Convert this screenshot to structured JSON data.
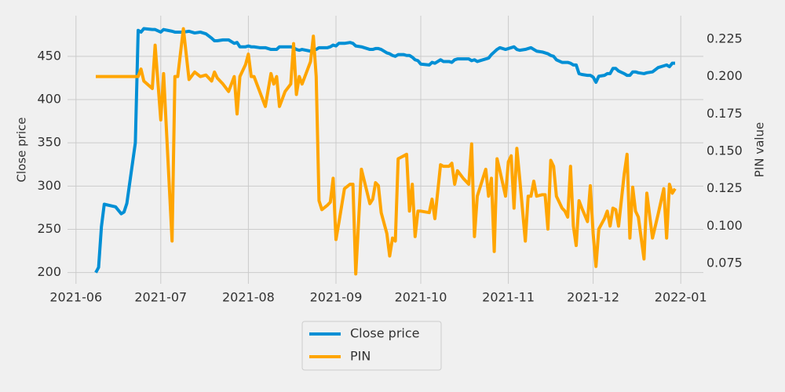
{
  "chart_data": {
    "type": "line",
    "x": [
      18786,
      18787,
      18788,
      18789,
      18793,
      18795,
      18796,
      18797,
      18800,
      18801,
      18802,
      18803,
      18806,
      18807,
      18809,
      18810,
      18813,
      18814,
      18815,
      18817,
      18819,
      18821,
      18823,
      18825,
      18827,
      18828,
      18829,
      18831,
      18833,
      18835,
      18836,
      18837,
      18839,
      18840,
      18841,
      18842,
      18844,
      18846,
      18848,
      18849,
      18850,
      18851,
      18853,
      18855,
      18856,
      18857,
      18858,
      18859,
      18862,
      18863,
      18864,
      18865,
      18866,
      18868,
      18869,
      18870,
      18871,
      18872,
      18874,
      18876,
      18877,
      18878,
      18880,
      18883,
      18884,
      18885,
      18886,
      18887,
      18889,
      18890,
      18891,
      18892,
      18893,
      18895,
      18896,
      18897,
      18898,
      18899,
      18900,
      18901,
      18904,
      18905,
      18906,
      18908,
      18909,
      18911,
      18912,
      18913,
      18914,
      18916,
      18918,
      18919,
      18920,
      18921,
      18924,
      18925,
      18926,
      18927,
      18928,
      18929,
      18931,
      18932,
      18933,
      18934,
      18935,
      18936,
      18938,
      18939,
      18940,
      18941,
      18942,
      18944,
      18945,
      18946,
      18947,
      18948,
      18949,
      18951,
      18952,
      18953,
      18954,
      18955,
      18956,
      18957,
      18958,
      18960,
      18961,
      18962,
      18963,
      18964,
      18966,
      18967,
      18968,
      18969,
      18970,
      18971,
      18973,
      18974,
      18975,
      18976,
      18977,
      18978,
      18980,
      18981,
      18983,
      18985,
      18987,
      18988,
      18989,
      18990,
      18991
    ],
    "series": [
      {
        "name": "Close price",
        "color": "#008fd5",
        "axis": "y",
        "values": [
          200,
          206,
          253,
          279,
          276,
          268,
          270,
          280,
          350,
          480,
          478,
          482,
          481,
          481,
          478,
          481,
          479,
          478,
          478,
          478,
          479,
          477,
          478,
          476,
          471,
          468,
          468,
          469,
          469,
          465,
          466,
          461,
          461,
          462,
          461,
          461,
          460,
          460,
          458,
          458,
          458,
          461,
          461,
          461,
          460,
          458,
          457,
          458,
          456,
          458,
          458,
          460,
          460,
          460,
          461,
          463,
          462,
          465,
          465,
          466,
          465,
          462,
          461,
          458,
          458,
          459,
          459,
          458,
          454,
          453,
          451,
          450,
          452,
          452,
          451,
          451,
          449,
          446,
          445,
          441,
          440,
          443,
          442,
          446,
          444,
          444,
          443,
          446,
          447,
          447,
          447,
          445,
          446,
          444,
          447,
          448,
          452,
          455,
          458,
          460,
          458,
          459,
          460,
          461,
          458,
          457,
          458,
          459,
          460,
          458,
          456,
          455,
          454,
          453,
          451,
          450,
          446,
          443,
          443,
          443,
          442,
          440,
          440,
          430,
          429,
          428,
          428,
          426,
          420,
          427,
          428,
          430,
          430,
          436,
          436,
          433,
          430,
          428,
          428,
          432,
          432,
          431,
          430,
          431,
          432,
          437,
          439,
          440,
          438,
          442,
          442
        ]
      },
      {
        "name": "PIN",
        "color": "#ffa500",
        "axis": "y2",
        "values": [
          0.2,
          0.2,
          0.2,
          0.2,
          0.2,
          0.2,
          0.2,
          0.2,
          0.2,
          0.2,
          0.205,
          0.197,
          0.192,
          0.221,
          0.171,
          0.202,
          0.09,
          0.2,
          0.2,
          0.232,
          0.198,
          0.203,
          0.2,
          0.201,
          0.197,
          0.203,
          0.199,
          0.195,
          0.19,
          0.2,
          0.175,
          0.2,
          0.208,
          0.215,
          0.2,
          0.2,
          0.19,
          0.18,
          0.202,
          0.195,
          0.2,
          0.18,
          0.19,
          0.195,
          0.222,
          0.188,
          0.2,
          0.195,
          0.21,
          0.227,
          0.2,
          0.117,
          0.111,
          0.114,
          0.116,
          0.132,
          0.091,
          0.102,
          0.125,
          0.128,
          0.128,
          0.068,
          0.138,
          0.115,
          0.118,
          0.129,
          0.127,
          0.109,
          0.095,
          0.08,
          0.092,
          0.09,
          0.145,
          0.147,
          0.148,
          0.11,
          0.128,
          0.093,
          0.11,
          0.11,
          0.109,
          0.118,
          0.105,
          0.141,
          0.14,
          0.14,
          0.142,
          0.128,
          0.137,
          0.132,
          0.128,
          0.155,
          0.093,
          0.12,
          0.138,
          0.12,
          0.132,
          0.083,
          0.145,
          0.137,
          0.12,
          0.143,
          0.147,
          0.112,
          0.152,
          0.132,
          0.09,
          0.12,
          0.12,
          0.13,
          0.12,
          0.121,
          0.121,
          0.098,
          0.144,
          0.14,
          0.12,
          0.112,
          0.11,
          0.106,
          0.14,
          0.1,
          0.087,
          0.117,
          0.112,
          0.103,
          0.127,
          0.095,
          0.073,
          0.098,
          0.105,
          0.11,
          0.1,
          0.112,
          0.111,
          0.1,
          0.135,
          0.148,
          0.092,
          0.126,
          0.11,
          0.106,
          0.078,
          0.122,
          0.092,
          0.108,
          0.125,
          0.092,
          0.128,
          0.122,
          0.125
        ]
      }
    ],
    "ylabel": "Close price",
    "y2label": "PIN value",
    "xlim": [
      18776,
      19001
    ],
    "xticks": [
      {
        "value": 18779,
        "label": "2021-06"
      },
      {
        "value": 18809,
        "label": "2021-07"
      },
      {
        "value": 18840,
        "label": "2021-08"
      },
      {
        "value": 18871,
        "label": "2021-09"
      },
      {
        "value": 18901,
        "label": "2021-10"
      },
      {
        "value": 18932,
        "label": "2021-11"
      },
      {
        "value": 18962,
        "label": "2021-12"
      },
      {
        "value": 18993,
        "label": "2022-01"
      }
    ],
    "ylim": [
      187,
      497
    ],
    "yticks": [
      200,
      250,
      300,
      350,
      400,
      450
    ],
    "y2lim": [
      0.0614,
      0.2407
    ],
    "y2ticks": [
      0.075,
      {
        "value": 0.1,
        "label": "0.100"
      },
      0.125,
      {
        "value": 0.15,
        "label": "0.150"
      },
      0.175,
      {
        "value": 0.2,
        "label": "0.200"
      },
      0.225
    ],
    "grid": true,
    "legend": "below"
  }
}
